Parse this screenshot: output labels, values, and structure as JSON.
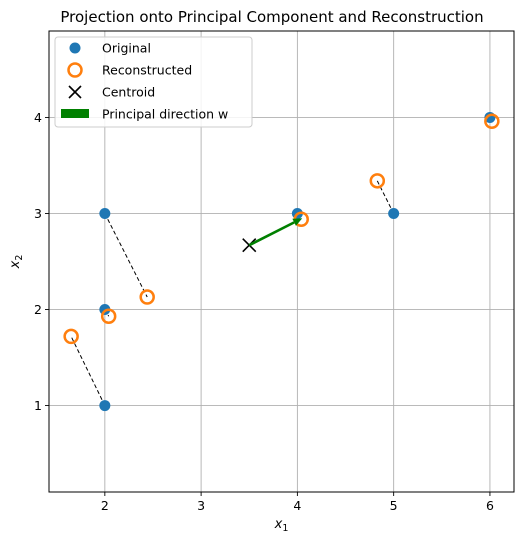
{
  "chart_data": {
    "type": "scatter",
    "title": "Projection onto Principal Component and Reconstruction",
    "xlabel": {
      "main": "x",
      "sub": "1"
    },
    "ylabel": {
      "main": "x",
      "sub": "2"
    },
    "xlim": [
      1.42,
      6.25
    ],
    "ylim": [
      0.1,
      4.9
    ],
    "xticks": [
      2,
      3,
      4,
      5,
      6
    ],
    "yticks": [
      1,
      2,
      3,
      4
    ],
    "grid": true,
    "legend_position": "top-left",
    "colors": {
      "original": "#1f77b4",
      "reconstructed": "#ff7f0e",
      "centroid": "#000000",
      "principal": "#008000",
      "grid": "#b0b0b0"
    },
    "series": [
      {
        "name": "Original",
        "marker": "filled-circle",
        "points": [
          [
            2,
            1
          ],
          [
            2,
            2
          ],
          [
            2,
            3
          ],
          [
            4,
            3
          ],
          [
            5,
            3
          ],
          [
            6,
            4
          ]
        ]
      },
      {
        "name": "Reconstructed",
        "marker": "hollow-circle",
        "points": [
          [
            1.65,
            1.72
          ],
          [
            2.04,
            1.93
          ],
          [
            2.44,
            2.13
          ],
          [
            4.04,
            2.94
          ],
          [
            4.83,
            3.34
          ],
          [
            6.02,
            3.96
          ]
        ]
      },
      {
        "name": "Centroid",
        "marker": "x",
        "points": [
          [
            3.5,
            2.67
          ]
        ]
      }
    ],
    "principal_direction": {
      "name": "Principal direction w",
      "from": [
        3.5,
        2.67
      ],
      "to": [
        4.05,
        2.95
      ]
    },
    "legend": [
      {
        "label": "Original",
        "kind": "filled-circle"
      },
      {
        "label": "Reconstructed",
        "kind": "hollow-circle"
      },
      {
        "label": "Centroid",
        "kind": "x"
      },
      {
        "label": "Principal direction w",
        "kind": "rect"
      }
    ]
  }
}
